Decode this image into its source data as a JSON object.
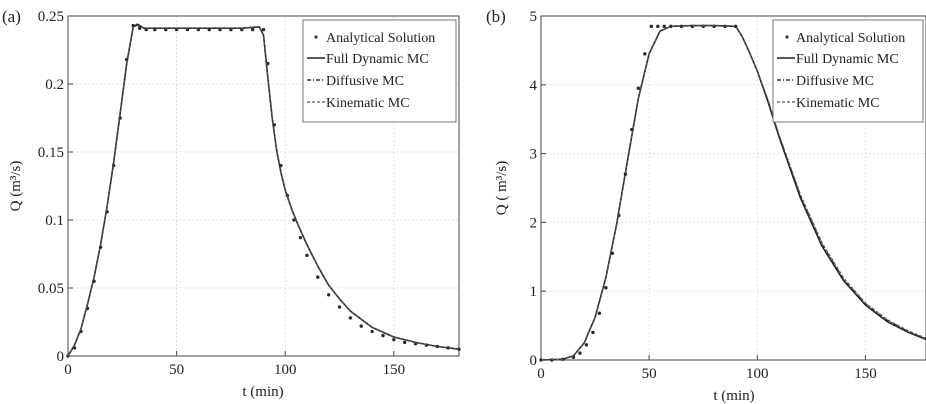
{
  "chart_data": [
    {
      "type": "line",
      "panel_label": "(a)",
      "xlabel": "t (min)",
      "ylabel": "Q (m³/s)",
      "xlim": [
        0,
        180
      ],
      "ylim": [
        0,
        0.25
      ],
      "x_ticks": [
        "0",
        "50",
        "100",
        "150"
      ],
      "y_ticks": [
        "0",
        "0.05",
        "0.1",
        "0.15",
        "0.2",
        "0.25"
      ],
      "grid": true,
      "legend_position": "top-right",
      "legend": [
        "Analytical Solution",
        "Full Dynamic MC",
        "Diffusive MC",
        "Kinematic MC"
      ],
      "series": [
        {
          "name": "Analytical Solution",
          "style": "points",
          "x": [
            0,
            3,
            6,
            9,
            12,
            15,
            18,
            21,
            24,
            27,
            30,
            33,
            36,
            40,
            45,
            50,
            55,
            60,
            65,
            70,
            75,
            80,
            85,
            90,
            92,
            95,
            98,
            101,
            104,
            107,
            110,
            115,
            120,
            125,
            130,
            135,
            140,
            145,
            150,
            155,
            160,
            165,
            170,
            175,
            180
          ],
          "y": [
            0,
            0.006,
            0.018,
            0.035,
            0.055,
            0.08,
            0.106,
            0.14,
            0.175,
            0.218,
            0.243,
            0.241,
            0.24,
            0.24,
            0.24,
            0.24,
            0.24,
            0.24,
            0.24,
            0.24,
            0.24,
            0.24,
            0.24,
            0.24,
            0.215,
            0.17,
            0.14,
            0.118,
            0.1,
            0.087,
            0.074,
            0.058,
            0.045,
            0.036,
            0.028,
            0.022,
            0.018,
            0.015,
            0.012,
            0.01,
            0.009,
            0.008,
            0.007,
            0.006,
            0.005
          ]
        },
        {
          "name": "Full Dynamic MC",
          "style": "solid",
          "x": [
            0,
            3,
            6,
            9,
            12,
            15,
            18,
            21,
            24,
            27,
            30,
            32,
            35,
            40,
            50,
            60,
            70,
            80,
            88,
            90,
            92,
            94,
            96,
            98,
            100,
            103,
            106,
            110,
            115,
            120,
            125,
            130,
            135,
            140,
            150,
            160,
            170,
            180
          ],
          "y": [
            0,
            0.008,
            0.02,
            0.038,
            0.058,
            0.082,
            0.11,
            0.142,
            0.178,
            0.215,
            0.242,
            0.244,
            0.241,
            0.241,
            0.241,
            0.241,
            0.241,
            0.241,
            0.242,
            0.236,
            0.205,
            0.175,
            0.152,
            0.135,
            0.122,
            0.108,
            0.096,
            0.082,
            0.066,
            0.052,
            0.042,
            0.033,
            0.027,
            0.021,
            0.014,
            0.01,
            0.007,
            0.005
          ]
        },
        {
          "name": "Diffusive MC",
          "style": "dashdot",
          "x": [
            0,
            3,
            6,
            9,
            12,
            15,
            18,
            21,
            24,
            27,
            30,
            32,
            35,
            40,
            50,
            60,
            70,
            80,
            88,
            90,
            92,
            94,
            96,
            98,
            100,
            103,
            106,
            110,
            115,
            120,
            125,
            130,
            135,
            140,
            150,
            160,
            170,
            180
          ],
          "y": [
            0,
            0.008,
            0.02,
            0.038,
            0.058,
            0.082,
            0.11,
            0.142,
            0.178,
            0.215,
            0.242,
            0.243,
            0.241,
            0.241,
            0.241,
            0.241,
            0.241,
            0.241,
            0.242,
            0.236,
            0.205,
            0.175,
            0.152,
            0.135,
            0.122,
            0.108,
            0.096,
            0.082,
            0.066,
            0.052,
            0.042,
            0.033,
            0.027,
            0.021,
            0.014,
            0.01,
            0.007,
            0.005
          ]
        },
        {
          "name": "Kinematic MC",
          "style": "dashed",
          "x": [
            0,
            3,
            6,
            9,
            12,
            15,
            18,
            21,
            24,
            27,
            30,
            32,
            35,
            40,
            50,
            60,
            70,
            80,
            88,
            90,
            92,
            94,
            96,
            98,
            100,
            103,
            106,
            110,
            115,
            120,
            125,
            130,
            135,
            140,
            150,
            160,
            170,
            180
          ],
          "y": [
            0,
            0.008,
            0.02,
            0.038,
            0.058,
            0.082,
            0.11,
            0.142,
            0.178,
            0.215,
            0.242,
            0.243,
            0.241,
            0.241,
            0.241,
            0.241,
            0.241,
            0.241,
            0.242,
            0.236,
            0.205,
            0.175,
            0.152,
            0.135,
            0.122,
            0.108,
            0.096,
            0.082,
            0.066,
            0.052,
            0.042,
            0.033,
            0.027,
            0.021,
            0.014,
            0.01,
            0.007,
            0.005
          ]
        }
      ]
    },
    {
      "type": "line",
      "panel_label": "(b)",
      "xlabel": "t (min)",
      "ylabel": "Q ( m³/s)",
      "xlim": [
        0,
        178
      ],
      "ylim": [
        0,
        5
      ],
      "x_ticks": [
        "0",
        "50",
        "100",
        "150"
      ],
      "y_ticks": [
        "0",
        "1",
        "2",
        "3",
        "4",
        "5"
      ],
      "grid": true,
      "legend_position": "top-right",
      "legend": [
        "Analytical Solution",
        "Full Dynamic MC",
        "Diffusive MC",
        "Kinematic MC"
      ],
      "series": [
        {
          "name": "Analytical Solution",
          "style": "points",
          "x": [
            0,
            5,
            10,
            15,
            18,
            21,
            24,
            27,
            30,
            33,
            36,
            39,
            42,
            45,
            48,
            51,
            54,
            57,
            60,
            65,
            70,
            75,
            80,
            85,
            90
          ],
          "y": [
            0,
            0,
            0.01,
            0.04,
            0.1,
            0.22,
            0.4,
            0.68,
            1.05,
            1.55,
            2.1,
            2.7,
            3.35,
            3.95,
            4.45,
            4.85,
            4.85,
            4.85,
            4.85,
            4.85,
            4.85,
            4.85,
            4.85,
            4.85,
            4.85
          ]
        },
        {
          "name": "Full Dynamic MC",
          "style": "solid",
          "x": [
            0,
            10,
            15,
            20,
            25,
            30,
            35,
            40,
            45,
            50,
            55,
            60,
            70,
            80,
            90,
            93,
            96,
            100,
            105,
            110,
            115,
            120,
            130,
            140,
            150,
            160,
            170,
            178
          ],
          "y": [
            0,
            0.01,
            0.06,
            0.25,
            0.62,
            1.2,
            1.98,
            2.9,
            3.8,
            4.45,
            4.78,
            4.85,
            4.86,
            4.86,
            4.85,
            4.7,
            4.5,
            4.2,
            3.75,
            3.25,
            2.8,
            2.35,
            1.65,
            1.15,
            0.8,
            0.56,
            0.4,
            0.3
          ]
        },
        {
          "name": "Diffusive MC",
          "style": "dashdot",
          "x": [
            0,
            10,
            15,
            20,
            25,
            30,
            35,
            40,
            45,
            50,
            55,
            60,
            70,
            80,
            90,
            93,
            96,
            100,
            105,
            110,
            115,
            120,
            130,
            140,
            150,
            160,
            170,
            178
          ],
          "y": [
            0,
            0.01,
            0.06,
            0.25,
            0.62,
            1.2,
            1.98,
            2.9,
            3.8,
            4.45,
            4.78,
            4.85,
            4.86,
            4.86,
            4.85,
            4.7,
            4.5,
            4.2,
            3.77,
            3.27,
            2.83,
            2.38,
            1.68,
            1.17,
            0.82,
            0.58,
            0.41,
            0.31
          ]
        },
        {
          "name": "Kinematic MC",
          "style": "dashed",
          "x": [
            0,
            10,
            15,
            20,
            25,
            30,
            35,
            40,
            45,
            50,
            55,
            60,
            70,
            80,
            90,
            93,
            96,
            100,
            105,
            110,
            115,
            120,
            130,
            140,
            150,
            160,
            170,
            178
          ],
          "y": [
            0,
            0.01,
            0.06,
            0.25,
            0.62,
            1.2,
            1.98,
            2.9,
            3.8,
            4.45,
            4.78,
            4.85,
            4.86,
            4.86,
            4.85,
            4.7,
            4.5,
            4.2,
            3.78,
            3.28,
            2.84,
            2.4,
            1.7,
            1.19,
            0.83,
            0.59,
            0.42,
            0.32
          ]
        }
      ]
    }
  ]
}
